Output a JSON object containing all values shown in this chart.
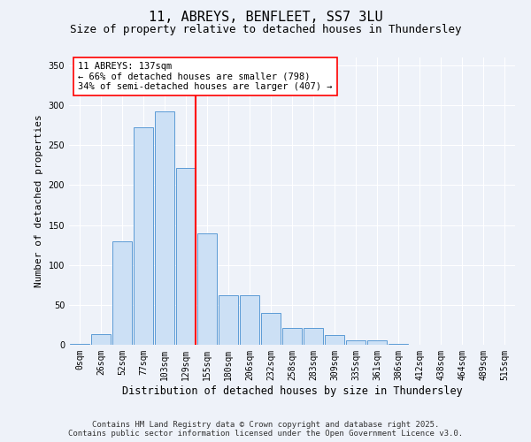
{
  "title": "11, ABREYS, BENFLEET, SS7 3LU",
  "subtitle": "Size of property relative to detached houses in Thundersley",
  "xlabel": "Distribution of detached houses by size in Thundersley",
  "ylabel": "Number of detached properties",
  "bar_labels": [
    "0sqm",
    "26sqm",
    "52sqm",
    "77sqm",
    "103sqm",
    "129sqm",
    "155sqm",
    "180sqm",
    "206sqm",
    "232sqm",
    "258sqm",
    "283sqm",
    "309sqm",
    "335sqm",
    "361sqm",
    "386sqm",
    "412sqm",
    "438sqm",
    "464sqm",
    "489sqm",
    "515sqm"
  ],
  "bar_values": [
    1,
    13,
    130,
    272,
    292,
    222,
    140,
    62,
    62,
    40,
    21,
    21,
    12,
    5,
    5,
    1,
    0,
    0,
    0,
    0,
    0
  ],
  "bar_color": "#cce0f5",
  "bar_edge_color": "#5b9bd5",
  "vline_x_index": 5,
  "vline_color": "red",
  "annotation_text": "11 ABREYS: 137sqm\n← 66% of detached houses are smaller (798)\n34% of semi-detached houses are larger (407) →",
  "annotation_box_color": "white",
  "annotation_box_edge_color": "red",
  "ylim": [
    0,
    360
  ],
  "yticks": [
    0,
    50,
    100,
    150,
    200,
    250,
    300,
    350
  ],
  "footer_line1": "Contains HM Land Registry data © Crown copyright and database right 2025.",
  "footer_line2": "Contains public sector information licensed under the Open Government Licence v3.0.",
  "bg_color": "#eef2f9",
  "plot_bg_color": "#eef2f9",
  "grid_color": "#ffffff",
  "title_fontsize": 11,
  "subtitle_fontsize": 9,
  "xlabel_fontsize": 8.5,
  "ylabel_fontsize": 8,
  "tick_fontsize": 7,
  "annotation_fontsize": 7.5,
  "footer_fontsize": 6.5
}
